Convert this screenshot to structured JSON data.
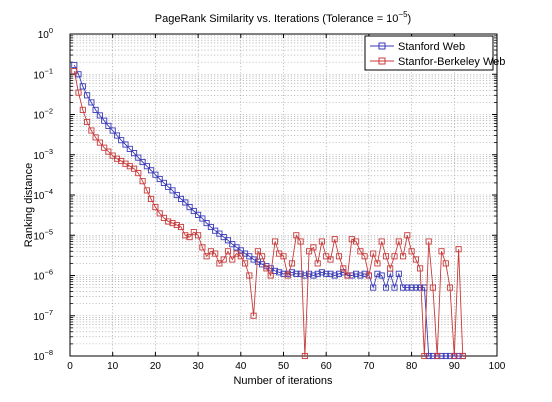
{
  "chart_data": {
    "type": "line",
    "title": "PageRank Similarity vs. Iterations (Tolerance = 10",
    "title_exponent": "−5",
    "title_suffix": ")",
    "xlabel": "Number of iterations",
    "ylabel": "Ranking distance",
    "xlim": [
      0,
      100
    ],
    "ylim_exponent": [
      -8,
      0
    ],
    "yscale": "log",
    "grid": true,
    "legend_position": "top-right",
    "x_ticks": [
      "0",
      "10",
      "20",
      "30",
      "40",
      "50",
      "60",
      "70",
      "80",
      "90",
      "100"
    ],
    "y_ticks": [
      {
        "base": "10",
        "exp": "0"
      },
      {
        "base": "10",
        "exp": "−1"
      },
      {
        "base": "10",
        "exp": "−2"
      },
      {
        "base": "10",
        "exp": "−3"
      },
      {
        "base": "10",
        "exp": "−4"
      },
      {
        "base": "10",
        "exp": "−5"
      },
      {
        "base": "10",
        "exp": "−6"
      },
      {
        "base": "10",
        "exp": "−7"
      },
      {
        "base": "10",
        "exp": "−8"
      }
    ],
    "series": [
      {
        "name": "Stanford Web",
        "color": "#3a3ab8",
        "marker": "square",
        "x": [
          1,
          2,
          3,
          4,
          5,
          6,
          7,
          8,
          9,
          10,
          11,
          12,
          13,
          14,
          15,
          16,
          17,
          18,
          19,
          20,
          21,
          22,
          23,
          24,
          25,
          26,
          27,
          28,
          29,
          30,
          31,
          32,
          33,
          34,
          35,
          36,
          37,
          38,
          39,
          40,
          41,
          42,
          43,
          44,
          45,
          46,
          47,
          48,
          49,
          50,
          51,
          52,
          53,
          54,
          55,
          56,
          57,
          58,
          59,
          60,
          61,
          62,
          63,
          64,
          65,
          66,
          67,
          68,
          69,
          70,
          71,
          72,
          73,
          74,
          75,
          76,
          77,
          78,
          79,
          80,
          81,
          82,
          83,
          84,
          85,
          86,
          87,
          88,
          89,
          90,
          91,
          92
        ],
        "y": [
          0.17,
          0.1,
          0.05,
          0.03,
          0.02,
          0.013,
          0.0095,
          0.007,
          0.0052,
          0.004,
          0.003,
          0.0023,
          0.0018,
          0.0014,
          0.0011,
          0.00085,
          0.00066,
          0.00052,
          0.00041,
          0.00032,
          0.00025,
          0.0002,
          0.00016,
          0.00013,
          0.0001,
          8e-05,
          6.5e-05,
          5e-05,
          4e-05,
          3.2e-05,
          2.6e-05,
          2e-05,
          1.6e-05,
          1.3e-05,
          1.1e-05,
          9e-06,
          7.5e-06,
          6e-06,
          5e-06,
          4.2e-06,
          3.5e-06,
          3e-06,
          2.5e-06,
          2.2e-06,
          1.9e-06,
          1.7e-06,
          1.5e-06,
          1.3e-06,
          1.2e-06,
          1.1e-06,
          1.1e-06,
          1.2e-06,
          1.1e-06,
          1.1e-06,
          1e-06,
          1.1e-06,
          1e-06,
          1.1e-06,
          1.2e-06,
          1.1e-06,
          1.1e-06,
          1e-06,
          1.1e-06,
          1.2e-06,
          1e-06,
          1e-06,
          1.1e-06,
          1e-06,
          1.1e-06,
          1e-06,
          5e-07,
          1.1e-06,
          1e-06,
          5e-07,
          1.1e-06,
          5e-07,
          1.1e-06,
          5e-07,
          5e-07,
          5e-07,
          5e-07,
          5e-07,
          5e-07,
          1e-08,
          1e-08,
          1e-08,
          1e-08,
          1e-08,
          1e-08,
          1e-08,
          1e-08,
          1e-08
        ]
      },
      {
        "name": "Stanfor-Berkeley Web",
        "color": "#c83a3a",
        "marker": "square",
        "x": [
          1,
          2,
          3,
          4,
          5,
          6,
          7,
          8,
          9,
          10,
          11,
          12,
          13,
          14,
          15,
          16,
          17,
          18,
          19,
          20,
          21,
          22,
          23,
          24,
          25,
          26,
          27,
          28,
          29,
          30,
          31,
          32,
          33,
          34,
          35,
          36,
          37,
          38,
          39,
          40,
          41,
          42,
          43,
          44,
          45,
          46,
          47,
          48,
          49,
          50,
          51,
          52,
          53,
          54,
          55,
          56,
          57,
          58,
          59,
          60,
          61,
          62,
          63,
          64,
          65,
          66,
          67,
          68,
          69,
          70,
          71,
          72,
          73,
          74,
          75,
          76,
          77,
          78,
          79,
          80,
          81,
          82,
          83,
          84,
          85,
          86,
          87,
          88,
          89,
          90,
          91,
          92
        ],
        "y": [
          0.12,
          0.035,
          0.013,
          0.0065,
          0.004,
          0.0027,
          0.002,
          0.0015,
          0.0012,
          0.00095,
          0.0008,
          0.0007,
          0.0006,
          0.00052,
          0.00045,
          0.00035,
          0.00022,
          0.00013,
          8e-05,
          5e-05,
          3.5e-05,
          2.7e-05,
          2.2e-05,
          2e-05,
          1.8e-05,
          1.6e-05,
          1e-05,
          9e-06,
          1.2e-05,
          1e-05,
          5e-06,
          3e-06,
          4e-06,
          3.5e-06,
          2e-06,
          2.5e-06,
          4e-06,
          2.5e-06,
          3.5e-06,
          3e-06,
          2e-06,
          1e-06,
          1e-07,
          4e-06,
          3e-06,
          1.5e-06,
          1e-06,
          7e-06,
          3.5e-06,
          3e-06,
          1e-06,
          2e-06,
          1e-05,
          7e-06,
          1e-08,
          4e-06,
          5e-06,
          2e-06,
          7e-06,
          3e-06,
          2.5e-06,
          8e-06,
          3e-06,
          1.5e-06,
          1e-06,
          8e-06,
          7e-06,
          4e-06,
          3e-06,
          1e-06,
          3.5e-06,
          2e-06,
          7e-06,
          3e-06,
          1.5e-06,
          3e-06,
          7e-06,
          3e-06,
          1e-05,
          4e-06,
          2.5e-06,
          1.5e-06,
          1e-08,
          7e-06,
          5e-07,
          1e-08,
          4e-06,
          2e-06,
          5e-07,
          1e-08,
          4.5e-06,
          1e-08
        ]
      }
    ]
  }
}
